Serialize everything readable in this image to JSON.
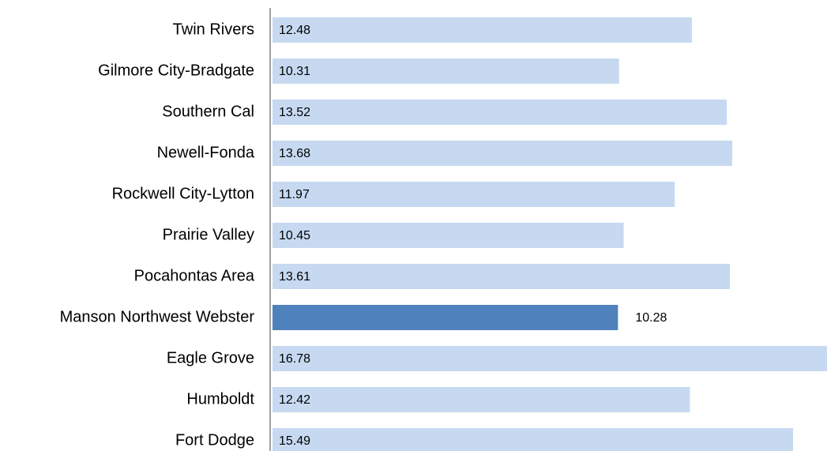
{
  "chart_data": {
    "type": "barh",
    "categories": [
      "Twin Rivers",
      "Gilmore City-Bradgate",
      "Southern Cal",
      "Newell-Fonda",
      "Rockwell City-Lytton",
      "Prairie Valley",
      "Pocahontas Area",
      "Manson Northwest Webster",
      "Eagle Grove",
      "Humboldt",
      "Fort Dodge"
    ],
    "values": [
      12.48,
      10.31,
      13.52,
      13.68,
      11.97,
      10.45,
      13.61,
      10.28,
      16.78,
      12.42,
      15.49
    ],
    "colors": [
      "#c6d9f1",
      "#c6d9f1",
      "#c6d9f1",
      "#c6d9f1",
      "#c6d9f1",
      "#c6d9f1",
      "#c6d9f1",
      "#4f81bd",
      "#c6d9f1",
      "#c6d9f1",
      "#c6d9f1"
    ],
    "xlim": [
      0,
      16.5
    ]
  }
}
